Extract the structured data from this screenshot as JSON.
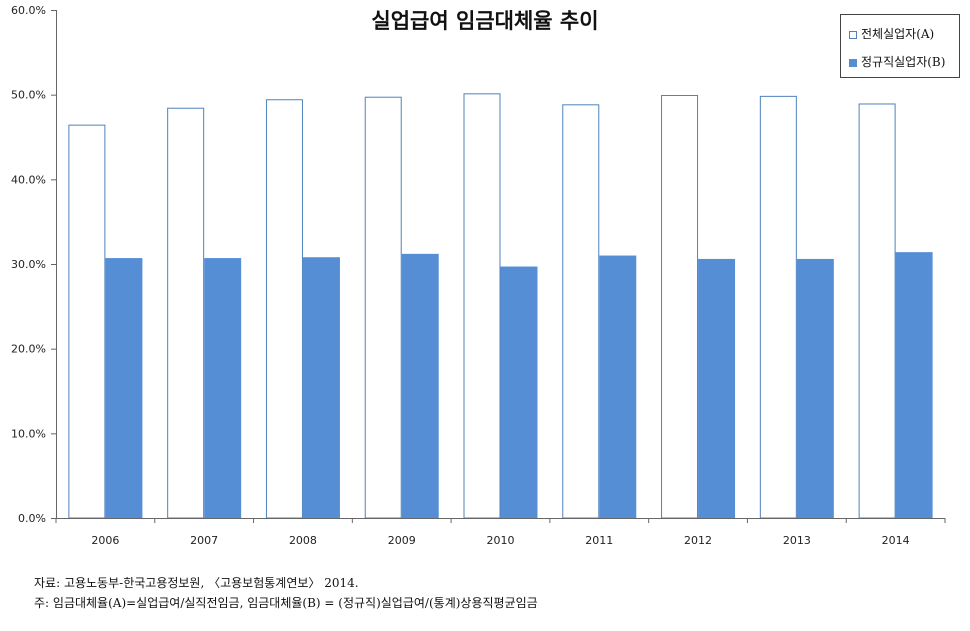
{
  "chart_data": {
    "type": "bar",
    "title": "실업급여 임금대체율 추이",
    "categories": [
      "2006",
      "2007",
      "2008",
      "2009",
      "2010",
      "2011",
      "2012",
      "2013",
      "2014"
    ],
    "series": [
      {
        "name": "전체실업자(A)",
        "values": [
          46.4,
          48.4,
          49.4,
          49.7,
          50.1,
          48.8,
          49.9,
          49.8,
          48.9
        ],
        "color": "#ffffff",
        "stroke": "#4f81bd"
      },
      {
        "name": "정규직실업자(B)",
        "values": [
          30.7,
          30.7,
          30.8,
          31.2,
          29.7,
          31.0,
          30.6,
          30.6,
          31.4
        ],
        "color": "#558ed5",
        "stroke": "#558ed5"
      }
    ],
    "ylim": [
      0,
      60
    ],
    "yticks": [
      "0.0%",
      "10.0%",
      "20.0%",
      "30.0%",
      "40.0%",
      "50.0%",
      "60.0%"
    ],
    "legend_position": "top-right",
    "grid": false
  },
  "source": "자료: 고용노동부-한국고용정보원, 〈고용보험통계연보〉 2014.",
  "note": "주: 임금대체율(A)=실업급여/실직전임금, 임금대체율(B) = (정규직)실업급여/(통계)상용직평균임금"
}
